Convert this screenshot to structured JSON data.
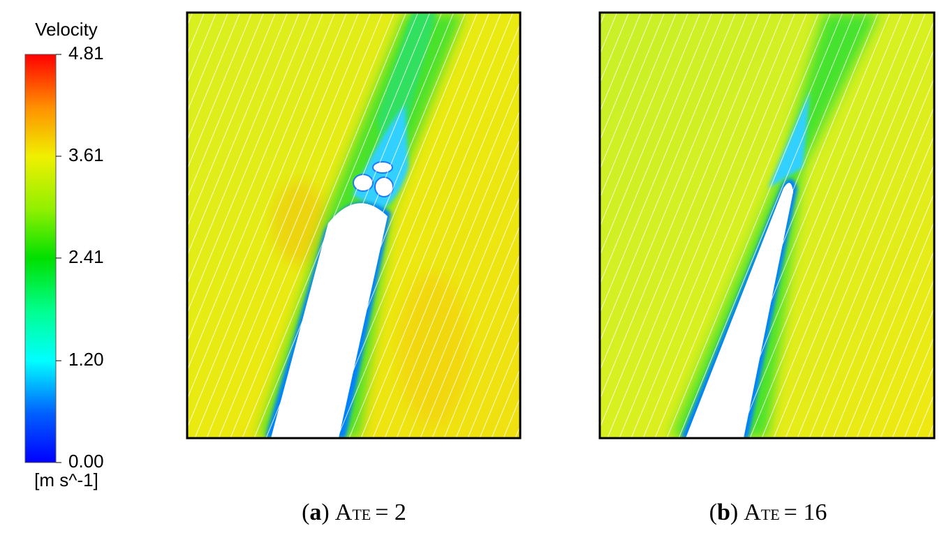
{
  "colorbar": {
    "title": "Velocity",
    "unit": "[m s^-1]",
    "range": [
      0,
      4.81
    ],
    "ticks": [
      4.81,
      3.61,
      2.41,
      {
        "value": 1.2,
        "label": "1.20"
      },
      {
        "value": 0,
        "label": "0.00"
      }
    ]
  },
  "panels": [
    {
      "caption": [
        "(",
        "a",
        ")",
        "A",
        "TE",
        "= 2"
      ]
    },
    {
      "caption": [
        "(",
        "b",
        ")",
        "A",
        "TE",
        "= 16"
      ]
    }
  ]
}
